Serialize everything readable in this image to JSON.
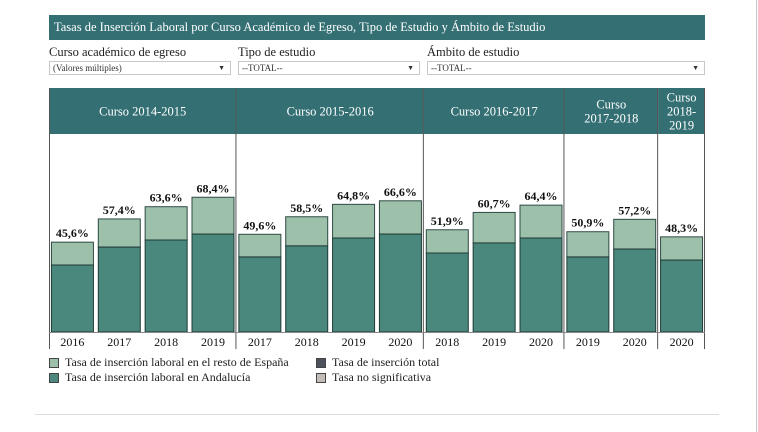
{
  "title": "Tasas de Inserción Laboral por Curso Académico de Egreso, Tipo de Estudio y Ámbito de Estudio",
  "filters": [
    {
      "label": "Curso académico de egreso",
      "value": "(Valores múltiples)",
      "icon": "chevron-down-icon"
    },
    {
      "label": "Tipo de estudio",
      "value": "--TOTAL--",
      "icon": "chevron-down-icon"
    },
    {
      "label": "Ámbito de estudio",
      "value": "--TOTAL--",
      "icon": "chevron-down-icon"
    }
  ],
  "colors": {
    "header": "#336f73",
    "andalucia": "#4a877c",
    "resto_espana": "#9cc0aa",
    "total": "#4b525c",
    "no_significativa": "#c4bcb6"
  },
  "legend": [
    {
      "label": "Tasa de inserción laboral en el resto de España",
      "color_key": "resto_espana"
    },
    {
      "label": "Tasa de inserción laboral en Andalucía",
      "color_key": "andalucia"
    },
    {
      "label": "Tasa de inserción total",
      "color_key": "total"
    },
    {
      "label": "Tasa no significativa",
      "color_key": "no_significativa"
    }
  ],
  "chart_data": {
    "type": "bar",
    "stacked": true,
    "title": "Tasas de Inserción Laboral por Curso Académico de Egreso, Tipo de Estudio y Ámbito de Estudio",
    "xlabel": "",
    "ylabel": "",
    "ylim": [
      0,
      100
    ],
    "grid": false,
    "legend_position": "bottom-left",
    "value_format": "percent-comma",
    "groups": [
      {
        "label": "Curso 2014-2015",
        "label_lines": [
          "Curso 2014-2015"
        ],
        "categories": [
          "2016",
          "2017",
          "2018",
          "2019"
        ],
        "total": [
          45.6,
          57.4,
          63.6,
          68.4
        ],
        "andalucia": [
          34.0,
          43.1,
          46.7,
          49.7
        ],
        "total_labels": [
          "45,6%",
          "57,4%",
          "63,6%",
          "68,4%"
        ]
      },
      {
        "label": "Curso 2015-2016",
        "label_lines": [
          "Curso 2015-2016"
        ],
        "categories": [
          "2017",
          "2018",
          "2019",
          "2020"
        ],
        "total": [
          49.6,
          58.5,
          64.8,
          66.6
        ],
        "andalucia": [
          38.1,
          43.7,
          47.7,
          49.7
        ],
        "total_labels": [
          "49,6%",
          "58,5%",
          "64,8%",
          "66,6%"
        ]
      },
      {
        "label": "Curso 2016-2017",
        "label_lines": [
          "Curso 2016-2017"
        ],
        "categories": [
          "2018",
          "2019",
          "2020"
        ],
        "total": [
          51.9,
          60.7,
          64.4
        ],
        "andalucia": [
          40.1,
          45.2,
          47.7
        ],
        "total_labels": [
          "51,9%",
          "60,7%",
          "64,4%"
        ]
      },
      {
        "label": "Curso 2017-2018",
        "label_lines": [
          "Curso",
          "2017-2018"
        ],
        "categories": [
          "2019",
          "2020"
        ],
        "total": [
          50.9,
          57.2
        ],
        "andalucia": [
          38.1,
          42.1
        ],
        "total_labels": [
          "50,9%",
          "57,2%"
        ]
      },
      {
        "label": "Curso 2018-2019",
        "label_lines": [
          "Curso",
          "2018-",
          "2019"
        ],
        "categories": [
          "2020"
        ],
        "total": [
          48.3
        ],
        "andalucia": [
          36.5
        ],
        "total_labels": [
          "48,3%"
        ]
      }
    ]
  }
}
